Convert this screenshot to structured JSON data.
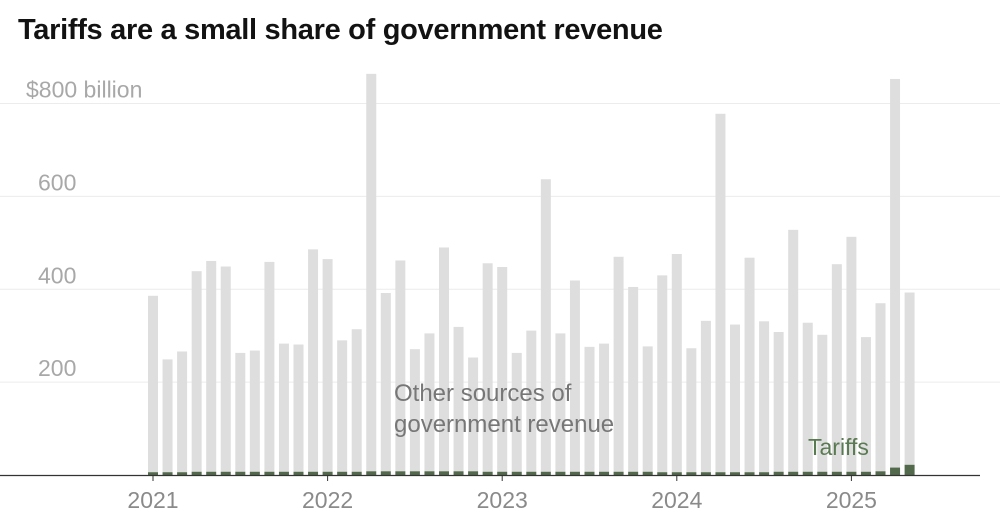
{
  "chart_data": {
    "type": "bar",
    "title": "Tariffs are a small share of government revenue",
    "ylabel": "",
    "xlabel": "",
    "ylim": [
      0,
      800
    ],
    "y_ticks": [
      {
        "value": 200,
        "label": "200"
      },
      {
        "value": 400,
        "label": "400"
      },
      {
        "value": 600,
        "label": "600"
      },
      {
        "value": 800,
        "label": "$800 billion"
      }
    ],
    "x_ticks": [
      {
        "index": 0,
        "label": "2021"
      },
      {
        "index": 12,
        "label": "2022"
      },
      {
        "index": 24,
        "label": "2023"
      },
      {
        "index": 36,
        "label": "2024"
      },
      {
        "index": 48,
        "label": "2025"
      }
    ],
    "categories": [
      "2021-01",
      "2021-02",
      "2021-03",
      "2021-04",
      "2021-05",
      "2021-06",
      "2021-07",
      "2021-08",
      "2021-09",
      "2021-10",
      "2021-11",
      "2021-12",
      "2022-01",
      "2022-02",
      "2022-03",
      "2022-04",
      "2022-05",
      "2022-06",
      "2022-07",
      "2022-08",
      "2022-09",
      "2022-10",
      "2022-11",
      "2022-12",
      "2023-01",
      "2023-02",
      "2023-03",
      "2023-04",
      "2023-05",
      "2023-06",
      "2023-07",
      "2023-08",
      "2023-09",
      "2023-10",
      "2023-11",
      "2023-12",
      "2024-01",
      "2024-02",
      "2024-03",
      "2024-04",
      "2024-05",
      "2024-06",
      "2024-07",
      "2024-08",
      "2024-09",
      "2024-10",
      "2024-11",
      "2024-12",
      "2025-01",
      "2025-02",
      "2025-03",
      "2025-04",
      "2025-05"
    ],
    "stacked": true,
    "series": [
      {
        "name": "Other sources of government revenue",
        "color": "#dedede",
        "values": [
          380,
          243,
          260,
          432,
          454,
          442,
          256,
          261,
          452,
          276,
          274,
          479,
          458,
          283,
          307,
          856,
          384,
          454,
          263,
          297,
          482,
          311,
          245,
          449,
          441,
          256,
          304,
          630,
          298,
          412,
          269,
          276,
          463,
          398,
          270,
          424,
          470,
          267,
          326,
          772,
          318,
          462,
          325,
          301,
          521,
          321,
          295,
          447,
          506,
          290,
          362,
          837,
          371
        ]
      },
      {
        "name": "Tariffs",
        "color": "#52694b",
        "values": [
          6,
          6,
          6,
          7,
          7,
          7,
          7,
          7,
          7,
          7,
          7,
          7,
          7,
          7,
          7,
          8,
          8,
          8,
          8,
          8,
          8,
          8,
          8,
          7,
          7,
          7,
          7,
          7,
          7,
          7,
          7,
          7,
          7,
          7,
          7,
          6,
          6,
          6,
          6,
          6,
          6,
          6,
          6,
          7,
          7,
          7,
          7,
          7,
          7,
          7,
          8,
          16,
          22
        ]
      }
    ],
    "annotations": {
      "other_line1": "Other sources of",
      "other_line2": "government revenue",
      "tariffs": "Tariffs"
    }
  }
}
